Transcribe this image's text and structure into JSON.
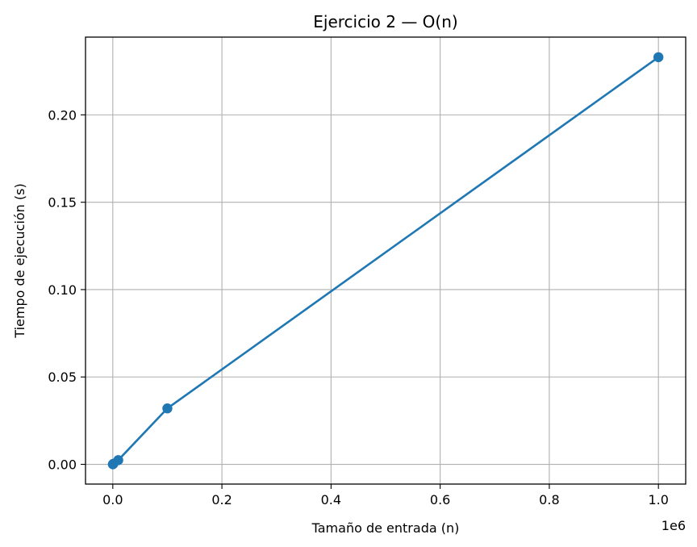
{
  "chart_data": {
    "type": "line",
    "title": "Ejercicio 2 — O(n)",
    "xlabel": "Tamaño de entrada (n)",
    "ylabel": "Tiempo de ejecución (s)",
    "x_offset_label": "1e6",
    "xlim": [
      -50000,
      1050000
    ],
    "ylim": [
      -0.0113,
      0.2445
    ],
    "x_ticks": [
      0,
      200000,
      400000,
      600000,
      800000,
      1000000
    ],
    "x_tick_labels": [
      "0.0",
      "0.2",
      "0.4",
      "0.6",
      "0.8",
      "1.0"
    ],
    "y_ticks": [
      0,
      0.05,
      0.1,
      0.15,
      0.2
    ],
    "y_tick_labels": [
      "0.00",
      "0.05",
      "0.10",
      "0.15",
      "0.20"
    ],
    "grid": true,
    "series": [
      {
        "color": "#1f77b4",
        "marker": "circle",
        "x": [
          100,
          1000,
          10000,
          100000,
          1000000
        ],
        "y": [
          3e-05,
          0.0003,
          0.0024,
          0.032,
          0.233
        ]
      }
    ]
  }
}
